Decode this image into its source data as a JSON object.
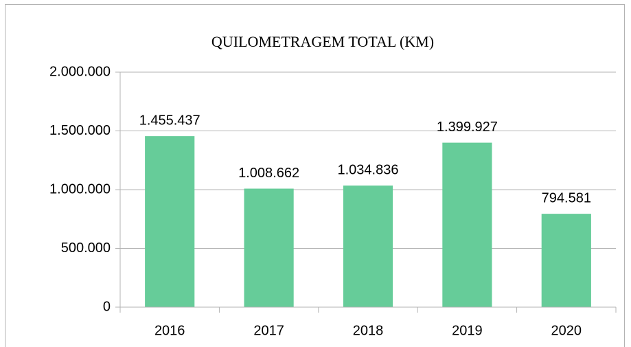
{
  "chart_data": {
    "type": "bar",
    "title": "QUILOMETRAGEM TOTAL (KM)",
    "categories": [
      "2016",
      "2017",
      "2018",
      "2019",
      "2020"
    ],
    "values": [
      1455437,
      1008662,
      1034836,
      1399927,
      794581
    ],
    "value_labels": [
      "1.455.437",
      "1.008.662",
      "1.034.836",
      "1.399.927",
      "794.581"
    ],
    "color": "#66cc99",
    "ylim": [
      0,
      2000000
    ],
    "yticks": [
      0,
      {
        "value": 500000,
        "label": "500.000"
      },
      {
        "value": 1000000,
        "label": "1.000.000"
      },
      {
        "value": 1500000,
        "label": "1.500.000"
      },
      {
        "value": 2000000,
        "label": "2.000.000"
      }
    ],
    "grid": true
  }
}
